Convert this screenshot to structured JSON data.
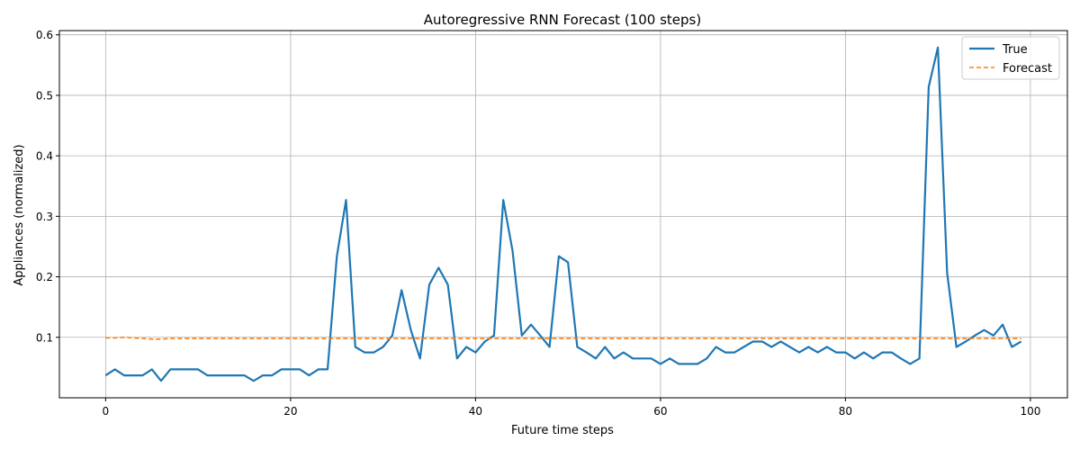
{
  "chart_data": {
    "type": "line",
    "title": "Autoregressive RNN Forecast (100 steps)",
    "xlabel": "Future time steps",
    "ylabel": "Appliances (normalized)",
    "xlim": [
      -5,
      104
    ],
    "ylim": [
      0.0,
      0.607
    ],
    "xticks": [
      0,
      20,
      40,
      60,
      80,
      100
    ],
    "yticks": [
      0.1,
      0.2,
      0.3,
      0.4,
      0.5,
      0.6
    ],
    "grid": true,
    "legend_position": "top-right",
    "series": [
      {
        "name": "True",
        "color": "#1f77b4",
        "style": "solid",
        "x": [
          0,
          1,
          2,
          3,
          4,
          5,
          6,
          7,
          8,
          9,
          10,
          11,
          12,
          13,
          14,
          15,
          16,
          17,
          18,
          19,
          20,
          21,
          22,
          23,
          24,
          25,
          26,
          27,
          28,
          29,
          30,
          31,
          32,
          33,
          34,
          35,
          36,
          37,
          38,
          39,
          40,
          41,
          42,
          43,
          44,
          45,
          46,
          47,
          48,
          49,
          50,
          51,
          52,
          53,
          54,
          55,
          56,
          57,
          58,
          59,
          60,
          61,
          62,
          63,
          64,
          65,
          66,
          67,
          68,
          69,
          70,
          71,
          72,
          73,
          74,
          75,
          76,
          77,
          78,
          79,
          80,
          81,
          82,
          83,
          84,
          85,
          86,
          87,
          88,
          89,
          90,
          91,
          92,
          93,
          94,
          95,
          96,
          97,
          98,
          99
        ],
        "values": [
          0.037,
          0.047,
          0.037,
          0.037,
          0.037,
          0.047,
          0.028,
          0.047,
          0.047,
          0.047,
          0.047,
          0.037,
          0.037,
          0.037,
          0.037,
          0.037,
          0.028,
          0.037,
          0.037,
          0.047,
          0.047,
          0.047,
          0.037,
          0.047,
          0.047,
          0.234,
          0.327,
          0.084,
          0.075,
          0.075,
          0.084,
          0.103,
          0.178,
          0.112,
          0.065,
          0.187,
          0.215,
          0.187,
          0.065,
          0.084,
          0.075,
          0.093,
          0.103,
          0.327,
          0.243,
          0.103,
          0.121,
          0.103,
          0.084,
          0.234,
          0.224,
          0.084,
          0.075,
          0.065,
          0.084,
          0.065,
          0.075,
          0.065,
          0.065,
          0.065,
          0.056,
          0.065,
          0.056,
          0.056,
          0.056,
          0.065,
          0.084,
          0.075,
          0.075,
          0.084,
          0.093,
          0.093,
          0.084,
          0.093,
          0.084,
          0.075,
          0.084,
          0.075,
          0.084,
          0.075,
          0.075,
          0.065,
          0.075,
          0.065,
          0.075,
          0.075,
          0.065,
          0.056,
          0.065,
          0.514,
          0.579,
          0.206,
          0.084,
          0.093,
          0.103,
          0.112,
          0.103,
          0.121,
          0.084,
          0.093
        ]
      },
      {
        "name": "Forecast",
        "color": "#ff7f0e",
        "style": "dashed",
        "x": [
          0,
          1,
          2,
          3,
          4,
          5,
          6,
          7,
          8,
          9,
          10,
          20,
          30,
          40,
          50,
          60,
          70,
          80,
          90,
          99
        ],
        "values": [
          0.099,
          0.099,
          0.1,
          0.099,
          0.098,
          0.097,
          0.097,
          0.098,
          0.098,
          0.098,
          0.098,
          0.098,
          0.098,
          0.098,
          0.098,
          0.098,
          0.098,
          0.098,
          0.098,
          0.098
        ]
      }
    ]
  }
}
